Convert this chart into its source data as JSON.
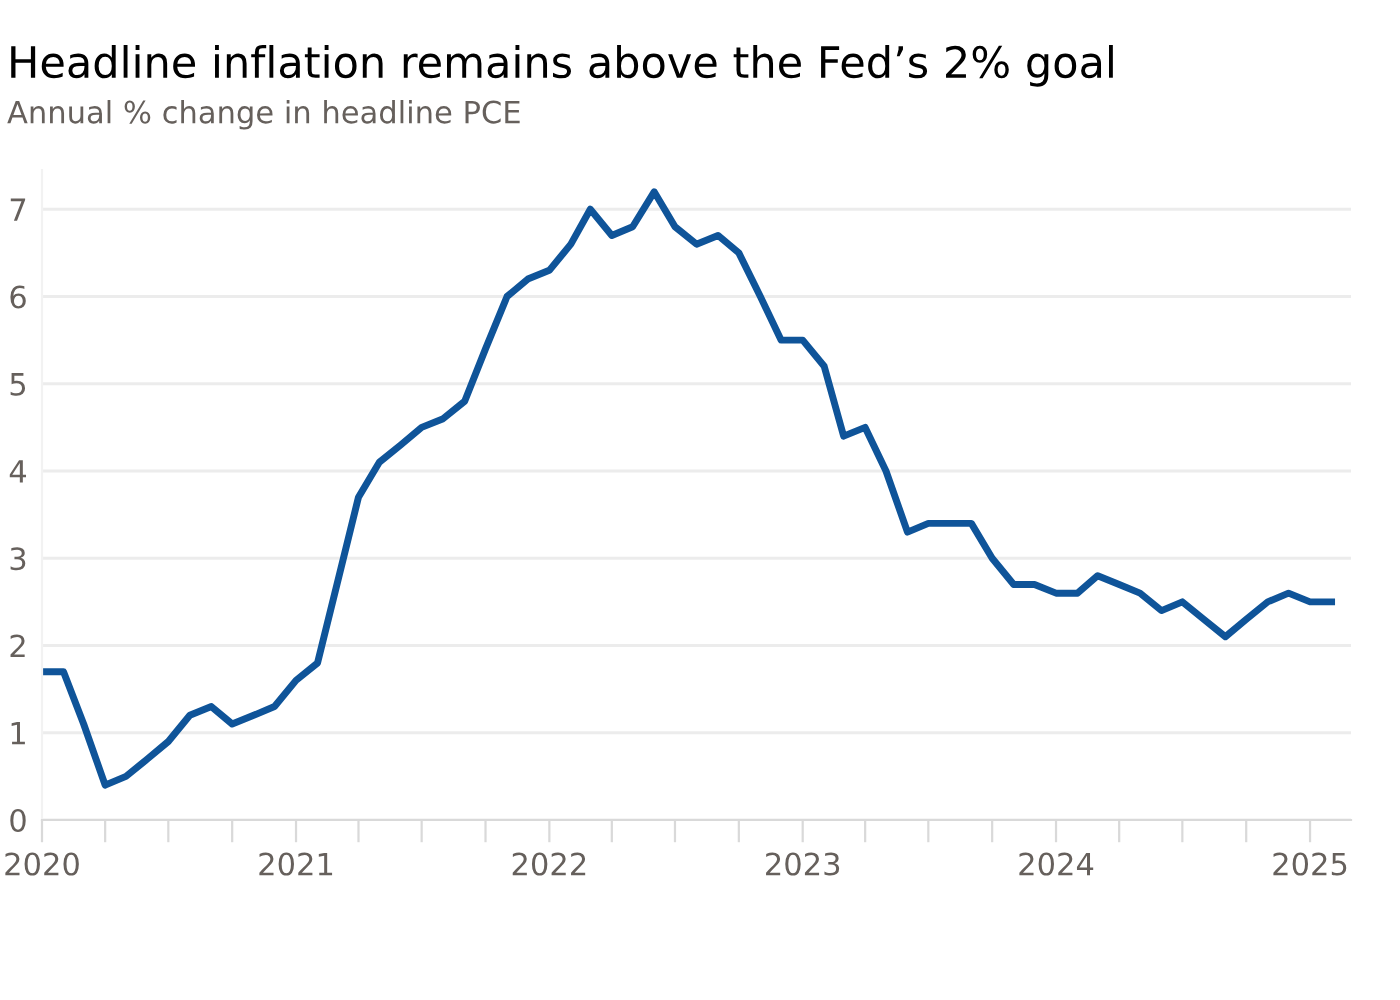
{
  "chart_data": {
    "type": "line",
    "title": "Headline inflation remains above the Fed’s 2% goal",
    "subtitle": "Annual % change in headline PCE",
    "x": [
      "2020-01",
      "2020-02",
      "2020-03",
      "2020-04",
      "2020-05",
      "2020-06",
      "2020-07",
      "2020-08",
      "2020-09",
      "2020-10",
      "2020-11",
      "2020-12",
      "2021-01",
      "2021-02",
      "2021-03",
      "2021-04",
      "2021-05",
      "2021-06",
      "2021-07",
      "2021-08",
      "2021-09",
      "2021-10",
      "2021-11",
      "2021-12",
      "2022-01",
      "2022-02",
      "2022-03",
      "2022-04",
      "2022-05",
      "2022-06",
      "2022-07",
      "2022-08",
      "2022-09",
      "2022-10",
      "2022-11",
      "2022-12",
      "2023-01",
      "2023-02",
      "2023-03",
      "2023-04",
      "2023-05",
      "2023-06",
      "2023-07",
      "2023-08",
      "2023-09",
      "2023-10",
      "2023-11",
      "2023-12",
      "2024-01",
      "2024-02",
      "2024-03",
      "2024-04",
      "2024-05",
      "2024-06",
      "2024-07",
      "2024-08",
      "2024-09",
      "2024-10",
      "2024-11",
      "2024-12",
      "2025-01",
      "2025-02"
    ],
    "series": [
      {
        "color": "#0f5499",
        "values": [
          1.7,
          1.7,
          1.1,
          0.4,
          0.5,
          0.7,
          0.9,
          1.2,
          1.3,
          1.1,
          1.2,
          1.3,
          1.6,
          1.8,
          2.7,
          3.7,
          4.1,
          4.3,
          4.5,
          4.6,
          4.8,
          5.4,
          6.0,
          6.2,
          6.3,
          6.6,
          7.0,
          6.7,
          6.8,
          7.2,
          6.8,
          6.6,
          6.7,
          6.5,
          6.0,
          5.5,
          5.5,
          5.2,
          4.4,
          4.5,
          4.0,
          3.3,
          3.4,
          3.4,
          3.4,
          3.0,
          2.7,
          2.7,
          2.6,
          2.6,
          2.8,
          2.7,
          2.6,
          2.4,
          2.5,
          2.3,
          2.1,
          2.3,
          2.5,
          2.6,
          2.5,
          2.5
        ]
      }
    ],
    "xlim": [
      "2020-01",
      "2025-03"
    ],
    "xticks": [
      {
        "value": "2020-01",
        "label": "2020"
      },
      {
        "value": "2020-04",
        "label": null
      },
      {
        "value": "2020-07",
        "label": null
      },
      {
        "value": "2020-10",
        "label": null
      },
      {
        "value": "2021-01",
        "label": "2021"
      },
      {
        "value": "2021-04",
        "label": null
      },
      {
        "value": "2021-07",
        "label": null
      },
      {
        "value": "2021-10",
        "label": null
      },
      {
        "value": "2022-01",
        "label": "2022"
      },
      {
        "value": "2022-04",
        "label": null
      },
      {
        "value": "2022-07",
        "label": null
      },
      {
        "value": "2022-10",
        "label": null
      },
      {
        "value": "2023-01",
        "label": "2023"
      },
      {
        "value": "2023-04",
        "label": null
      },
      {
        "value": "2023-07",
        "label": null
      },
      {
        "value": "2023-10",
        "label": null
      },
      {
        "value": "2024-01",
        "label": "2024"
      },
      {
        "value": "2024-04",
        "label": null
      },
      {
        "value": "2024-07",
        "label": null
      },
      {
        "value": "2024-10",
        "label": null
      },
      {
        "value": "2025-01",
        "label": "2025"
      }
    ],
    "ylim": [
      0,
      7.45
    ],
    "yticks": [
      0,
      1,
      2,
      3,
      4,
      5,
      6,
      7
    ],
    "grid": "y",
    "line_style": "solid",
    "marker": "none"
  }
}
